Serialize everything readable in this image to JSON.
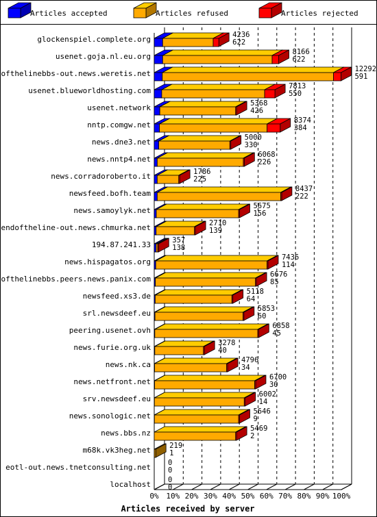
{
  "chart_data": {
    "type": "bar",
    "orientation": "horizontal",
    "stacked": true,
    "xlabel": "Articles received by server",
    "xlim": [
      0,
      100
    ],
    "x_unit": "percent",
    "x_ticks": [
      "0%",
      "10%",
      "20%",
      "30%",
      "40%",
      "50%",
      "60%",
      "70%",
      "80%",
      "90%",
      "100%"
    ],
    "legend_position": "top",
    "series": [
      {
        "name": "Articles accepted",
        "color": "#0000ff"
      },
      {
        "name": "Articles refused",
        "color": "#ffaa00"
      },
      {
        "name": "Articles rejected",
        "color": "#ff0000"
      }
    ],
    "rows": [
      {
        "server": "glockenspiel.complete.org",
        "total": "4236",
        "accepted_count": "622",
        "accepted_pct": 4.5,
        "refused_pct": 27.0,
        "rejected_pct": 3.0
      },
      {
        "server": "usenet.goja.nl.eu.org",
        "total": "8166",
        "accepted_count": "622",
        "accepted_pct": 4.5,
        "refused_pct": 58.5,
        "rejected_pct": 3.5
      },
      {
        "server": "endofthelinebbs-out.news.weretis.net",
        "total": "12292",
        "accepted_count": "591",
        "accepted_pct": 4.3,
        "refused_pct": 91.5,
        "rejected_pct": 4.0
      },
      {
        "server": "usenet.blueworldhosting.com",
        "total": "7813",
        "accepted_count": "550",
        "accepted_pct": 4.0,
        "refused_pct": 55.0,
        "rejected_pct": 5.5
      },
      {
        "server": "usenet.network",
        "total": "5368",
        "accepted_count": "426",
        "accepted_pct": 3.0,
        "refused_pct": 40.5,
        "rejected_pct": 0.5
      },
      {
        "server": "nntp.comgw.net",
        "total": "8374",
        "accepted_count": "384",
        "accepted_pct": 2.8,
        "refused_pct": 57.5,
        "rejected_pct": 7.0
      },
      {
        "server": "news.dne3.net",
        "total": "5000",
        "accepted_count": "330",
        "accepted_pct": 2.4,
        "refused_pct": 38.0,
        "rejected_pct": 0.5
      },
      {
        "server": "news.nntp4.net",
        "total": "6068",
        "accepted_count": "226",
        "accepted_pct": 1.6,
        "refused_pct": 46.0,
        "rejected_pct": 0.5
      },
      {
        "server": "news.corradoroberto.it",
        "total": "1786",
        "accepted_count": "225",
        "accepted_pct": 1.6,
        "refused_pct": 11.5,
        "rejected_pct": 0.5
      },
      {
        "server": "newsfeed.bofh.team",
        "total": "8437",
        "accepted_count": "222",
        "accepted_pct": 1.6,
        "refused_pct": 66.0,
        "rejected_pct": 0.5
      },
      {
        "server": "news.samoylyk.net",
        "total": "5675",
        "accepted_count": "156",
        "accepted_pct": 1.1,
        "refused_pct": 44.0,
        "rejected_pct": 0.5
      },
      {
        "server": "endoftheline-out.news.chmurka.net",
        "total": "2710",
        "accepted_count": "139",
        "accepted_pct": 1.0,
        "refused_pct": 20.5,
        "rejected_pct": 0.5
      },
      {
        "server": "194.87.241.33",
        "total": "357",
        "accepted_count": "138",
        "accepted_pct": 1.0,
        "refused_pct": 0.8,
        "rejected_pct": 0.5
      },
      {
        "server": "news.hispagatos.org",
        "total": "7436",
        "accepted_count": "114",
        "accepted_pct": 0.8,
        "refused_pct": 59.5,
        "rejected_pct": 0.5
      },
      {
        "server": "endofthelinebbs.peers.news.panix.com",
        "total": "6676",
        "accepted_count": "85",
        "accepted_pct": 0.6,
        "refused_pct": 53.5,
        "rejected_pct": 0.5
      },
      {
        "server": "newsfeed.xs3.de",
        "total": "5118",
        "accepted_count": "64",
        "accepted_pct": 0.5,
        "refused_pct": 41.0,
        "rejected_pct": 0.5
      },
      {
        "server": "srl.newsdeef.eu",
        "total": "5853",
        "accepted_count": "60",
        "accepted_pct": 0.4,
        "refused_pct": 47.0,
        "rejected_pct": 0.5
      },
      {
        "server": "peering.usenet.ovh",
        "total": "6858",
        "accepted_count": "45",
        "accepted_pct": 0.3,
        "refused_pct": 55.0,
        "rejected_pct": 0.5
      },
      {
        "server": "news.furie.org.uk",
        "total": "3278",
        "accepted_count": "40",
        "accepted_pct": 0.3,
        "refused_pct": 26.0,
        "rejected_pct": 0.5
      },
      {
        "server": "news.nk.ca",
        "total": "4796",
        "accepted_count": "34",
        "accepted_pct": 0.2,
        "refused_pct": 38.5,
        "rejected_pct": 0.5
      },
      {
        "server": "news.netfront.net",
        "total": "6700",
        "accepted_count": "30",
        "accepted_pct": 0.2,
        "refused_pct": 53.5,
        "rejected_pct": 0.5
      },
      {
        "server": "srv.newsdeef.eu",
        "total": "6002",
        "accepted_count": "14",
        "accepted_pct": 0.1,
        "refused_pct": 48.0,
        "rejected_pct": 0.5
      },
      {
        "server": "news.sonologic.net",
        "total": "5646",
        "accepted_count": "9",
        "accepted_pct": 0.1,
        "refused_pct": 45.0,
        "rejected_pct": 0.5
      },
      {
        "server": "news.bbs.nz",
        "total": "5469",
        "accepted_count": "2",
        "accepted_pct": 0.0,
        "refused_pct": 43.5,
        "rejected_pct": 0.5
      },
      {
        "server": "m68k.vk3heg.net",
        "total": "219",
        "accepted_count": "1",
        "accepted_pct": 0.0,
        "refused_pct": 0.8,
        "rejected_pct": 0.0,
        "other_color": "#cc8800"
      },
      {
        "server": "eotl-out.news.tnetconsulting.net",
        "total": "0",
        "accepted_count": "0",
        "accepted_pct": 0,
        "refused_pct": 0,
        "rejected_pct": 0
      },
      {
        "server": "localhost",
        "total": "0",
        "accepted_count": "0",
        "accepted_pct": 0,
        "refused_pct": 0,
        "rejected_pct": 0
      }
    ]
  }
}
